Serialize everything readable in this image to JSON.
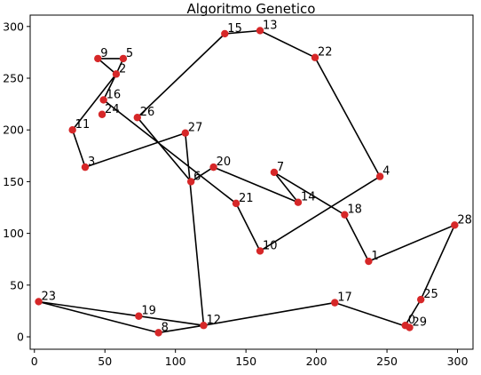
{
  "chart_data": {
    "type": "scatter",
    "title": "Algoritmo Genetico",
    "xlabel": "",
    "ylabel": "",
    "xlim": [
      -3,
      311
    ],
    "ylim": [
      -12,
      311
    ],
    "xticks": [
      0,
      50,
      100,
      150,
      200,
      250,
      300
    ],
    "yticks": [
      0,
      50,
      100,
      150,
      200,
      250,
      300
    ],
    "grid": false,
    "point_color": "#d62728",
    "line_color": "#000000",
    "points": [
      {
        "label": "0",
        "x": 263,
        "y": 11
      },
      {
        "label": "1",
        "x": 237,
        "y": 73
      },
      {
        "label": "2",
        "x": 58,
        "y": 254
      },
      {
        "label": "3",
        "x": 36,
        "y": 164
      },
      {
        "label": "4",
        "x": 245,
        "y": 155
      },
      {
        "label": "5",
        "x": 63,
        "y": 269
      },
      {
        "label": "6",
        "x": 111,
        "y": 150
      },
      {
        "label": "7",
        "x": 170,
        "y": 159
      },
      {
        "label": "8",
        "x": 88,
        "y": 4
      },
      {
        "label": "9",
        "x": 45,
        "y": 269
      },
      {
        "label": "10",
        "x": 160,
        "y": 83
      },
      {
        "label": "11",
        "x": 27,
        "y": 200
      },
      {
        "label": "12",
        "x": 120,
        "y": 11
      },
      {
        "label": "13",
        "x": 160,
        "y": 296
      },
      {
        "label": "14",
        "x": 187,
        "y": 130
      },
      {
        "label": "15",
        "x": 135,
        "y": 293
      },
      {
        "label": "16",
        "x": 49,
        "y": 229
      },
      {
        "label": "17",
        "x": 213,
        "y": 33
      },
      {
        "label": "18",
        "x": 220,
        "y": 118
      },
      {
        "label": "19",
        "x": 74,
        "y": 20
      },
      {
        "label": "20",
        "x": 127,
        "y": 164
      },
      {
        "label": "21",
        "x": 143,
        "y": 129
      },
      {
        "label": "22",
        "x": 199,
        "y": 270
      },
      {
        "label": "23",
        "x": 3,
        "y": 34
      },
      {
        "label": "24",
        "x": 48,
        "y": 215
      },
      {
        "label": "25",
        "x": 274,
        "y": 36
      },
      {
        "label": "26",
        "x": 73,
        "y": 212
      },
      {
        "label": "27",
        "x": 107,
        "y": 197
      },
      {
        "label": "28",
        "x": 298,
        "y": 108
      },
      {
        "label": "29",
        "x": 266,
        "y": 9
      }
    ],
    "route": [
      27,
      3,
      11,
      2,
      5,
      9,
      2,
      16,
      21,
      10,
      4,
      22,
      13,
      15,
      26,
      6,
      20,
      14,
      7,
      18,
      1,
      28,
      25,
      0,
      29,
      17,
      12,
      8,
      23,
      19,
      12,
      27
    ]
  }
}
